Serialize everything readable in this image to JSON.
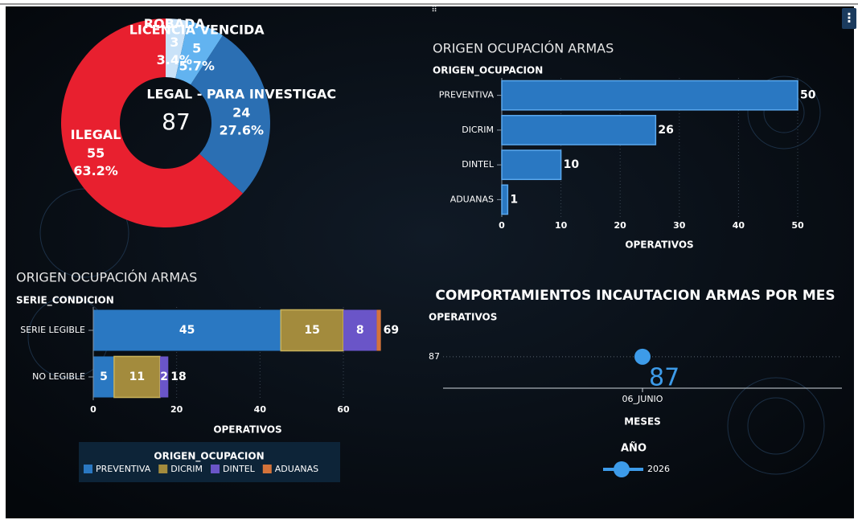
{
  "chart_data": [
    {
      "type": "pie",
      "total": 87,
      "categories": [
        "ROBADA",
        "LICENCIA VENCIDA",
        "LEGAL - PARA INVESTIGAC",
        "ILEGAL"
      ],
      "values": [
        3,
        5,
        24,
        55
      ],
      "percent_labels": [
        "3.4%",
        "5.7%",
        "27.6%",
        "63.2%"
      ],
      "colors": [
        "#c9e2f8",
        "#62b3f0",
        "#2b6fb3",
        "#e8202f"
      ]
    },
    {
      "type": "hbar",
      "title": "ORIGEN OCUPACIÓN ARMAS",
      "y_label": "ORIGEN_OCUPACION",
      "x_label": "OPERATIVOS",
      "categories": [
        "PREVENTIVA",
        "DICRIM",
        "DINTEL",
        "ADUANAS"
      ],
      "values": [
        50,
        26,
        10,
        1
      ],
      "color": "#2a78c2",
      "xlim": [
        0,
        50
      ],
      "xticks": [
        0,
        10,
        20,
        30,
        40,
        50
      ],
      "grid": true
    },
    {
      "type": "stacked_hbar",
      "title": "ORIGEN OCUPACIÓN ARMAS",
      "y_label": "SERIE_CONDICION",
      "x_label": "OPERATIVOS",
      "categories": [
        "SERIE LEGIBLE",
        "NO LEGIBLE"
      ],
      "totals": [
        69,
        18
      ],
      "series": [
        {
          "name": "PREVENTIVA",
          "color": "#2a78c2",
          "values": [
            45,
            5
          ]
        },
        {
          "name": "DICRIM",
          "color": "#a38b3d",
          "values": [
            15,
            11
          ]
        },
        {
          "name": "DINTEL",
          "color": "#6a55c8",
          "values": [
            8,
            2
          ]
        },
        {
          "name": "ADUANAS",
          "color": "#d4733a",
          "values": [
            1,
            null
          ]
        }
      ],
      "legend_title": "ORIGEN_OCUPACION",
      "xlim": [
        0,
        70
      ],
      "xticks": [
        0,
        20,
        40,
        60
      ],
      "grid": true
    },
    {
      "type": "line",
      "title": "COMPORTAMIENTOS INCAUTACION ARMAS  POR MES",
      "y_label": "OPERATIVOS",
      "x_label": "MESES",
      "categories": [
        "06_JUNIO"
      ],
      "values": [
        87
      ],
      "color": "#3d9be9",
      "ylim": [
        0,
        100
      ],
      "yticks": [
        87
      ],
      "grid": true,
      "year_filter": {
        "title": "AÑO",
        "value": 2026
      }
    }
  ]
}
